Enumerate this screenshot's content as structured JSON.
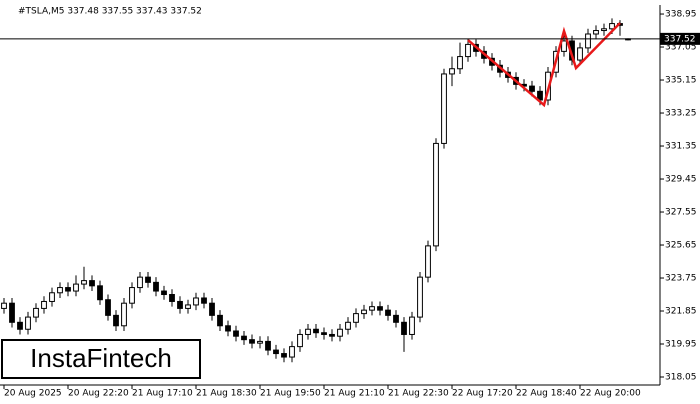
{
  "chart_data": {
    "type": "candlestick",
    "title": "#TSLA,M5  337.48 337.55 337.43 337.52",
    "watermark": "InstaFintech",
    "candles": [
      [
        322.0,
        322.6,
        321.7,
        322.3
      ],
      [
        322.3,
        322.6,
        320.9,
        321.2
      ],
      [
        321.2,
        321.5,
        320.5,
        320.8
      ],
      [
        320.8,
        321.8,
        320.5,
        321.5
      ],
      [
        321.5,
        322.3,
        321.2,
        322.0
      ],
      [
        322.0,
        322.7,
        321.7,
        322.4
      ],
      [
        322.4,
        323.2,
        322.1,
        322.9
      ],
      [
        322.9,
        323.5,
        322.6,
        323.2
      ],
      [
        323.2,
        323.5,
        322.7,
        323.0
      ],
      [
        323.0,
        323.9,
        322.7,
        323.4
      ],
      [
        323.4,
        324.4,
        323.1,
        323.6
      ],
      [
        323.6,
        323.9,
        323.0,
        323.3
      ],
      [
        323.3,
        323.6,
        322.2,
        322.5
      ],
      [
        322.5,
        322.8,
        321.3,
        321.6
      ],
      [
        321.6,
        321.9,
        320.7,
        321.0
      ],
      [
        321.0,
        322.6,
        320.7,
        322.3
      ],
      [
        322.3,
        323.5,
        322.0,
        323.2
      ],
      [
        323.2,
        324.1,
        322.9,
        323.8
      ],
      [
        323.8,
        324.1,
        323.2,
        323.5
      ],
      [
        323.5,
        323.8,
        322.7,
        323.0
      ],
      [
        323.0,
        323.3,
        322.5,
        322.8
      ],
      [
        322.8,
        323.1,
        322.1,
        322.4
      ],
      [
        322.4,
        322.7,
        321.7,
        322.0
      ],
      [
        322.0,
        322.5,
        321.7,
        322.2
      ],
      [
        322.2,
        322.9,
        321.9,
        322.6
      ],
      [
        322.6,
        322.9,
        322.0,
        322.3
      ],
      [
        322.3,
        322.6,
        321.3,
        321.6
      ],
      [
        321.6,
        321.9,
        320.7,
        321.0
      ],
      [
        321.0,
        321.3,
        320.4,
        320.7
      ],
      [
        320.7,
        321.0,
        320.1,
        320.4
      ],
      [
        320.4,
        320.7,
        319.9,
        320.2
      ],
      [
        320.2,
        320.5,
        319.7,
        320.0
      ],
      [
        320.0,
        320.4,
        319.7,
        320.1
      ],
      [
        320.1,
        320.4,
        319.3,
        319.6
      ],
      [
        319.6,
        319.9,
        319.1,
        319.4
      ],
      [
        319.4,
        319.7,
        318.9,
        319.2
      ],
      [
        319.2,
        320.1,
        318.9,
        319.8
      ],
      [
        319.8,
        320.8,
        319.5,
        320.5
      ],
      [
        320.5,
        321.1,
        320.2,
        320.8
      ],
      [
        320.8,
        321.1,
        320.3,
        320.6
      ],
      [
        320.6,
        320.9,
        320.2,
        320.5
      ],
      [
        320.5,
        320.8,
        320.1,
        320.4
      ],
      [
        320.4,
        321.1,
        320.1,
        320.8
      ],
      [
        320.8,
        321.5,
        320.5,
        321.2
      ],
      [
        321.2,
        322.0,
        320.9,
        321.7
      ],
      [
        321.7,
        322.2,
        321.4,
        321.9
      ],
      [
        321.9,
        322.4,
        321.6,
        322.1
      ],
      [
        322.1,
        322.4,
        321.6,
        321.9
      ],
      [
        321.9,
        322.2,
        321.3,
        321.6
      ],
      [
        321.6,
        321.9,
        320.9,
        321.2
      ],
      [
        321.2,
        321.5,
        319.5,
        320.5
      ],
      [
        320.5,
        321.8,
        320.2,
        321.5
      ],
      [
        321.5,
        324.1,
        321.2,
        323.8
      ],
      [
        323.8,
        325.9,
        323.5,
        325.6
      ],
      [
        325.6,
        331.8,
        325.3,
        331.5
      ],
      [
        331.5,
        335.8,
        331.2,
        335.5
      ],
      [
        335.5,
        336.5,
        334.8,
        335.8
      ],
      [
        335.8,
        337.3,
        335.5,
        336.5
      ],
      [
        336.5,
        337.5,
        336.2,
        337.2
      ],
      [
        337.2,
        337.5,
        336.5,
        336.8
      ],
      [
        336.8,
        337.1,
        336.1,
        336.4
      ],
      [
        336.4,
        336.7,
        335.7,
        336.0
      ],
      [
        336.0,
        336.3,
        335.3,
        335.6
      ],
      [
        335.6,
        335.9,
        335.0,
        335.3
      ],
      [
        335.3,
        335.6,
        334.6,
        334.9
      ],
      [
        334.9,
        335.2,
        334.5,
        334.8
      ],
      [
        334.8,
        335.1,
        334.2,
        334.5
      ],
      [
        334.5,
        334.8,
        333.7,
        334.0
      ],
      [
        334.0,
        335.9,
        333.7,
        335.6
      ],
      [
        335.6,
        337.1,
        335.3,
        336.8
      ],
      [
        336.8,
        338.0,
        336.5,
        337.4
      ],
      [
        337.4,
        337.7,
        336.0,
        336.3
      ],
      [
        336.3,
        337.3,
        336.0,
        337.0
      ],
      [
        337.0,
        338.1,
        336.7,
        337.8
      ],
      [
        337.8,
        338.3,
        337.5,
        338.0
      ],
      [
        338.0,
        338.4,
        337.7,
        338.1
      ],
      [
        338.1,
        338.7,
        337.8,
        338.4
      ],
      [
        338.4,
        338.6,
        337.7,
        338.3
      ],
      [
        337.48,
        337.55,
        337.43,
        337.52
      ]
    ],
    "last_price": 337.52,
    "pattern": {
      "color": "#e8191a",
      "x": [
        58,
        67.5,
        70,
        71.5,
        77
      ],
      "y": [
        337.45,
        333.71,
        337.97,
        335.84,
        338.43
      ]
    },
    "xlim": [
      -0.5,
      82
    ],
    "xticks": [
      {
        "value": 0,
        "label": "20 Aug 2025"
      },
      {
        "value": 8,
        "label": "20 Aug 22:20"
      },
      {
        "value": 16,
        "label": "21 Aug 17:10"
      },
      {
        "value": 24,
        "label": "21 Aug 18:30"
      },
      {
        "value": 32,
        "label": "21 Aug 19:50"
      },
      {
        "value": 40,
        "label": "21 Aug 21:10"
      },
      {
        "value": 48,
        "label": "21 Aug 22:30"
      },
      {
        "value": 56,
        "label": "22 Aug 17:20"
      },
      {
        "value": 64,
        "label": "22 Aug 18:40"
      },
      {
        "value": 72,
        "label": "22 Aug 20:00"
      }
    ],
    "ylim": [
      317.59,
      339.47
    ],
    "yticks": [
      338.95,
      337.05,
      335.15,
      333.25,
      331.35,
      329.45,
      327.55,
      325.65,
      323.75,
      321.85,
      319.95,
      318.05
    ]
  }
}
